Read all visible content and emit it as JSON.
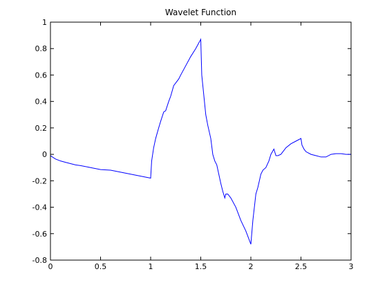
{
  "chart_data": {
    "type": "line",
    "title": "Wavelet Function",
    "xlabel": "",
    "ylabel": "",
    "xlim": [
      0,
      3
    ],
    "ylim": [
      -0.8,
      1
    ],
    "grid": false,
    "line_color": "#0000ff",
    "xticks": [
      0,
      0.5,
      1,
      1.5,
      2,
      2.5,
      3
    ],
    "xtick_labels": [
      "0",
      "0.5",
      "1",
      "1.5",
      "2",
      "2.5",
      "3"
    ],
    "yticks": [
      -0.8,
      -0.6,
      -0.4,
      -0.2,
      0,
      0.2,
      0.4,
      0.6,
      0.8,
      1
    ],
    "ytick_labels": [
      "-0.8",
      "-0.6",
      "-0.4",
      "-0.2",
      "0",
      "0.2",
      "0.4",
      "0.6",
      "0.8",
      "1"
    ],
    "series": [
      {
        "x": [
          0,
          0.02,
          0.05,
          0.1,
          0.15,
          0.2,
          0.25,
          0.3,
          0.4,
          0.5,
          0.6,
          0.7,
          0.8,
          0.9,
          1.0,
          1.01,
          1.03,
          1.05,
          1.08,
          1.1,
          1.13,
          1.15,
          1.18,
          1.2,
          1.23,
          1.25,
          1.28,
          1.3,
          1.35,
          1.4,
          1.45,
          1.5,
          1.51,
          1.53,
          1.55,
          1.57,
          1.6,
          1.62,
          1.64,
          1.66,
          1.68,
          1.7,
          1.72,
          1.74,
          1.75,
          1.77,
          1.8,
          1.85,
          1.9,
          1.95,
          2.0,
          2.02,
          2.05,
          2.07,
          2.1,
          2.12,
          2.15,
          2.18,
          2.2,
          2.23,
          2.25,
          2.27,
          2.3,
          2.35,
          2.4,
          2.45,
          2.5,
          2.51,
          2.53,
          2.55,
          2.6,
          2.65,
          2.7,
          2.75,
          2.8,
          2.85,
          2.9,
          2.95,
          2.98,
          3.0
        ],
        "y": [
          -0.01,
          -0.02,
          -0.035,
          -0.05,
          -0.06,
          -0.07,
          -0.08,
          -0.085,
          -0.1,
          -0.115,
          -0.12,
          -0.135,
          -0.15,
          -0.165,
          -0.18,
          -0.05,
          0.05,
          0.12,
          0.2,
          0.25,
          0.32,
          0.33,
          0.4,
          0.44,
          0.52,
          0.54,
          0.57,
          0.6,
          0.67,
          0.74,
          0.8,
          0.87,
          0.6,
          0.45,
          0.3,
          0.22,
          0.12,
          0.0,
          -0.05,
          -0.08,
          -0.15,
          -0.22,
          -0.28,
          -0.33,
          -0.3,
          -0.3,
          -0.33,
          -0.4,
          -0.5,
          -0.58,
          -0.68,
          -0.5,
          -0.3,
          -0.25,
          -0.15,
          -0.12,
          -0.1,
          -0.05,
          0.0,
          0.04,
          -0.01,
          -0.01,
          0.0,
          0.05,
          0.08,
          0.1,
          0.12,
          0.07,
          0.04,
          0.02,
          0.0,
          -0.01,
          -0.02,
          -0.02,
          0.0,
          0.005,
          0.005,
          0.0,
          0.0,
          0.0
        ]
      }
    ]
  }
}
